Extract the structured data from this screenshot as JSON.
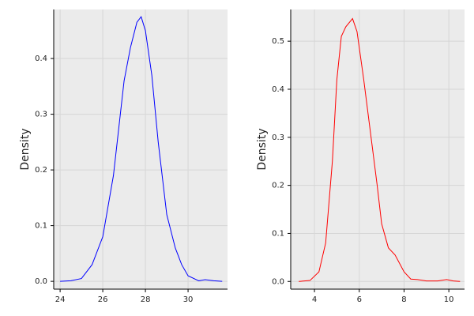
{
  "chart_data": [
    {
      "type": "line",
      "ylabel": "Density",
      "x": [
        24,
        24.5,
        25,
        25.5,
        26,
        26.5,
        27,
        27.3,
        27.6,
        27.8,
        28,
        28.3,
        28.6,
        29,
        29.4,
        29.7,
        30,
        30.5,
        30.8,
        31.2,
        31.6
      ],
      "series": [
        {
          "color": "#0000ff",
          "values": [
            0.0,
            0.001,
            0.005,
            0.03,
            0.08,
            0.19,
            0.36,
            0.42,
            0.465,
            0.475,
            0.45,
            0.37,
            0.25,
            0.12,
            0.06,
            0.03,
            0.01,
            0.001,
            0.003,
            0.001,
            0.0
          ]
        }
      ],
      "xlim": [
        23.7,
        31.85
      ],
      "xticks": [
        24,
        26,
        28,
        30
      ],
      "ylim": [
        -0.014,
        0.488
      ],
      "yticks": [
        {
          "value": 0,
          "label": "0.0"
        },
        0.1,
        0.2,
        0.3,
        0.4
      ],
      "grid": true
    },
    {
      "type": "line",
      "ylabel": "Density",
      "x": [
        3.3,
        3.8,
        4.2,
        4.5,
        4.8,
        5.0,
        5.2,
        5.4,
        5.7,
        5.9,
        6.2,
        6.5,
        6.8,
        7.0,
        7.3,
        7.6,
        8.0,
        8.3,
        8.6,
        9.0,
        9.5,
        9.9,
        10.2,
        10.5
      ],
      "series": [
        {
          "color": "#ff0000",
          "values": [
            0.0,
            0.002,
            0.02,
            0.08,
            0.25,
            0.42,
            0.51,
            0.53,
            0.547,
            0.52,
            0.42,
            0.31,
            0.2,
            0.12,
            0.07,
            0.055,
            0.02,
            0.005,
            0.004,
            0.001,
            0.001,
            0.004,
            0.001,
            0.0
          ]
        }
      ],
      "xlim": [
        2.94,
        10.7
      ],
      "xticks": [
        4,
        6,
        8,
        10
      ],
      "ylim": [
        -0.016,
        0.566
      ],
      "yticks": [
        {
          "value": 0,
          "label": "0.0"
        },
        0.1,
        0.2,
        0.3,
        0.4,
        0.5
      ],
      "grid": true
    }
  ]
}
